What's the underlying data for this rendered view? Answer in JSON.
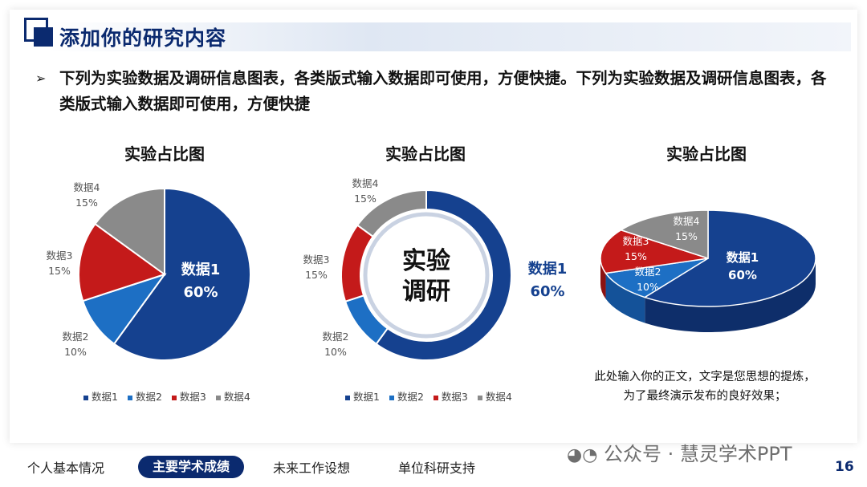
{
  "header": {
    "title": "添加你的研究内容",
    "bullet": "➢"
  },
  "intro": {
    "text": "下列为实验数据及调研信息图表，各类版式输入数据即可使用，方便快捷。下列为实验数据及调研信息图表，各类版式输入数据即可使用，方便快捷"
  },
  "colors": {
    "s1": "#15418f",
    "s2": "#1d6fc4",
    "s3": "#c41a1a",
    "s4": "#8a8a8a",
    "brand": "#0b2a6f"
  },
  "chart_data": [
    {
      "type": "pie",
      "title": "实验占比图",
      "categories": [
        "数据1",
        "数据2",
        "数据3",
        "数据4"
      ],
      "values": [
        60,
        10,
        15,
        15
      ],
      "labels": [
        "60%",
        "10%",
        "15%",
        "15%"
      ],
      "legend": "bottom"
    },
    {
      "type": "pie",
      "title": "",
      "categories": [
        "数据1",
        "数据2",
        "数据3",
        "数据4"
      ],
      "values": [
        60,
        10,
        15,
        15
      ],
      "labels": [
        "60%",
        "10%",
        "15%",
        "15%"
      ],
      "center_text": [
        "实验",
        "调研"
      ],
      "legend": "bottom"
    },
    {
      "type": "pie",
      "title": "实验占比图",
      "categories": [
        "数据1",
        "数据2",
        "数据3",
        "数据4"
      ],
      "values": [
        60,
        10,
        15,
        15
      ],
      "labels": [
        "60%",
        "10%",
        "15%",
        "15%"
      ]
    }
  ],
  "chart2_title": "实验占比图",
  "note": {
    "line1": "此处输入你的正文，文字是您思想的提炼，",
    "line2": "为了最终演示发布的良好效果；"
  },
  "nav": {
    "items": [
      "个人基本情况",
      "主要学术成绩",
      "未来工作设想",
      "单位科研支持"
    ],
    "page": "16"
  },
  "watermark": "公众号 · 慧灵学术PPT"
}
